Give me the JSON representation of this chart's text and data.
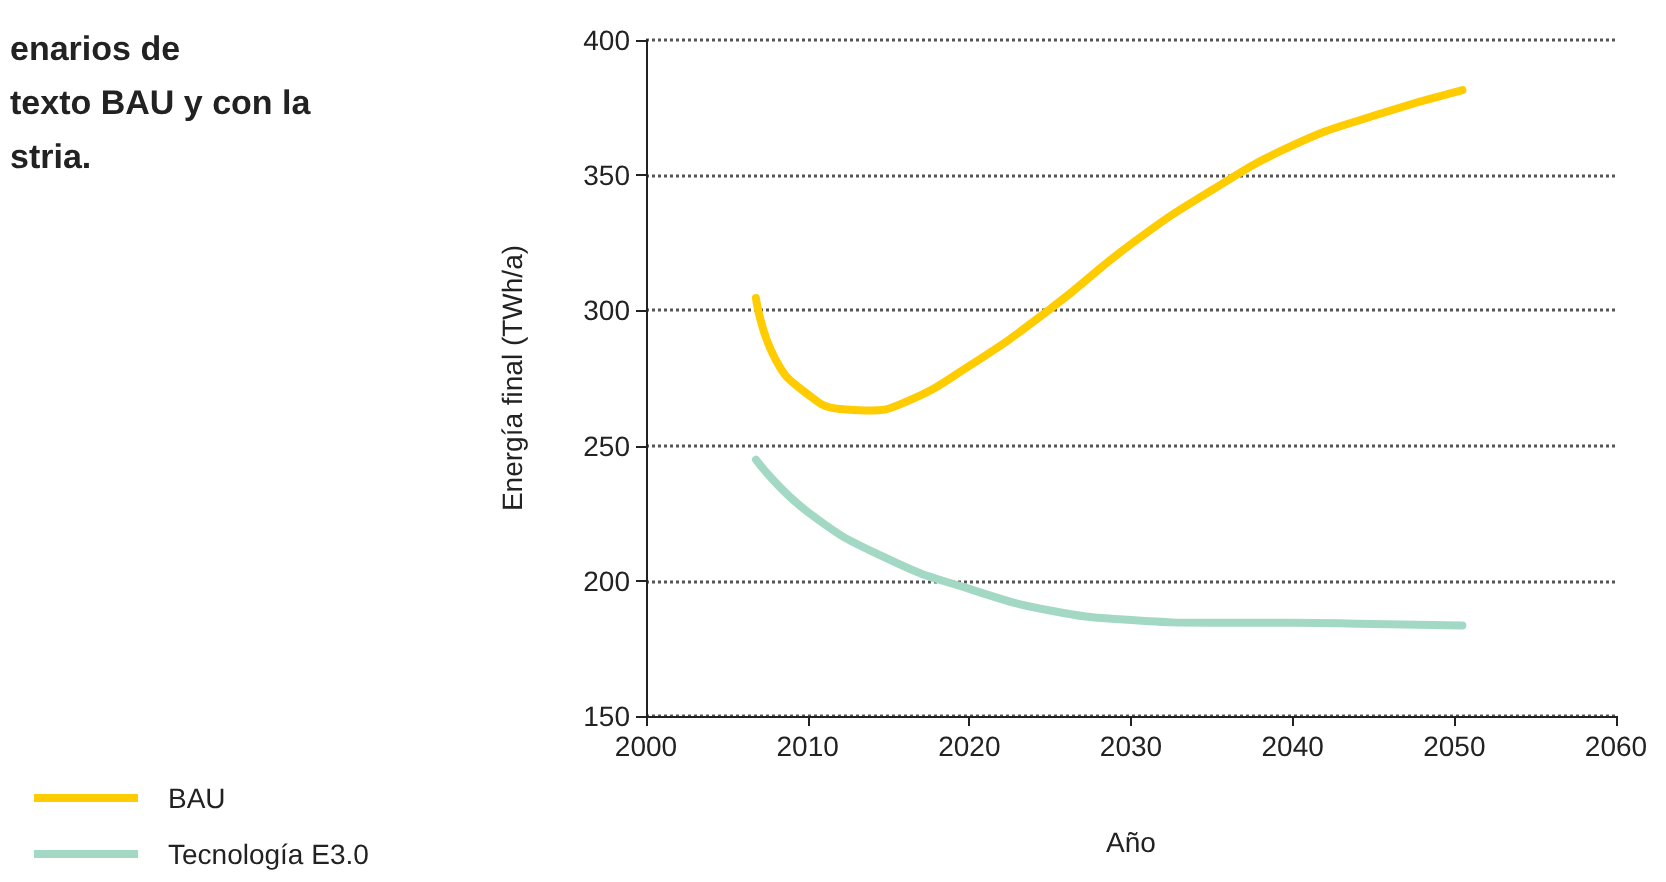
{
  "chart_data": {
    "type": "line",
    "title": "enarios de\ntexto BAU y con la\nstria.",
    "xlabel": "Año",
    "ylabel": "Energía final (TWh/a)",
    "series": [
      {
        "name": "BAU",
        "color": "#ffcc00",
        "x": [
          2006.8,
          2008,
          2010,
          2012,
          2013.6,
          2016,
          2020,
          2025,
          2030,
          2035,
          2040,
          2045,
          2050.5
        ],
        "values": [
          304.6,
          282,
          269,
          263.5,
          263,
          266,
          279.5,
          300.5,
          324.5,
          344.5,
          361,
          372,
          381.5
        ]
      },
      {
        "name": "Tecnología E3.0",
        "color": "#a3d9c4",
        "x": [
          2006.8,
          2010,
          2015,
          2020,
          2025,
          2030,
          2035,
          2040,
          2045,
          2050.5
        ],
        "values": [
          244.8,
          225.5,
          208,
          197,
          189,
          185.5,
          184.5,
          184.5,
          184,
          183.5
        ]
      }
    ],
    "xlim": [
      2000,
      2060
    ],
    "xticks": [
      2000,
      2010,
      2020,
      2030,
      2040,
      2050,
      2060
    ],
    "ylim": [
      150,
      400
    ],
    "yticks": [
      150,
      200,
      250,
      300,
      350,
      400
    ],
    "grid": "y",
    "legend": "bottom left",
    "marker": "none",
    "line_style": "solid"
  }
}
